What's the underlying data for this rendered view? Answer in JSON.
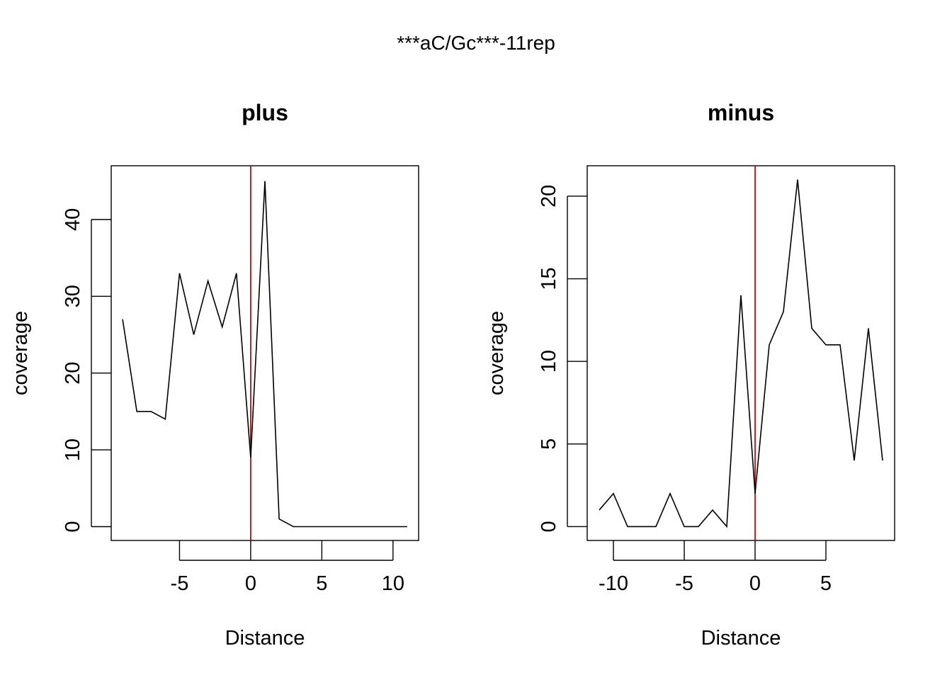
{
  "figure": {
    "title": "***aC/Gc***-11rep"
  },
  "chart_data": [
    {
      "type": "line",
      "title": "plus",
      "xlabel": "Distance",
      "ylabel": "coverage",
      "x": [
        -9,
        -8,
        -7,
        -6,
        -5,
        -4,
        -3,
        -2,
        -1,
        0,
        1,
        2,
        3,
        4,
        5,
        6,
        7,
        8,
        9,
        10,
        11
      ],
      "series": [
        {
          "values": [
            27,
            15,
            15,
            14,
            33,
            25,
            32,
            26,
            33,
            9,
            45,
            1,
            0,
            0,
            0,
            0,
            0,
            0,
            0,
            0,
            0
          ]
        }
      ],
      "xlim": [
        -9.8,
        11.8
      ],
      "ylim": [
        -1.8,
        47
      ],
      "xticks": [
        -5,
        0,
        5,
        10
      ],
      "yticks": [
        0,
        10,
        20,
        30,
        40
      ],
      "vline": {
        "x": 0,
        "color": "#e00000"
      },
      "grid": false,
      "legend": "none"
    },
    {
      "type": "line",
      "title": "minus",
      "xlabel": "Distance",
      "ylabel": "coverage",
      "x": [
        -11,
        -10,
        -9,
        -8,
        -7,
        -6,
        -5,
        -4,
        -3,
        -2,
        -1,
        0,
        1,
        2,
        3,
        4,
        5,
        6,
        7,
        8,
        9
      ],
      "series": [
        {
          "values": [
            1,
            2,
            0,
            0,
            0,
            2,
            0,
            0,
            1,
            0,
            14,
            2,
            11,
            13,
            21,
            12,
            11,
            11,
            4,
            12,
            4
          ]
        }
      ],
      "xlim": [
        -11.85,
        9.85
      ],
      "ylim": [
        -0.84,
        21.84
      ],
      "xticks": [
        -10,
        -5,
        0,
        5
      ],
      "yticks": [
        0,
        5,
        10,
        15,
        20
      ],
      "vline": {
        "x": 0,
        "color": "#e00000"
      },
      "grid": false,
      "legend": "none"
    }
  ]
}
